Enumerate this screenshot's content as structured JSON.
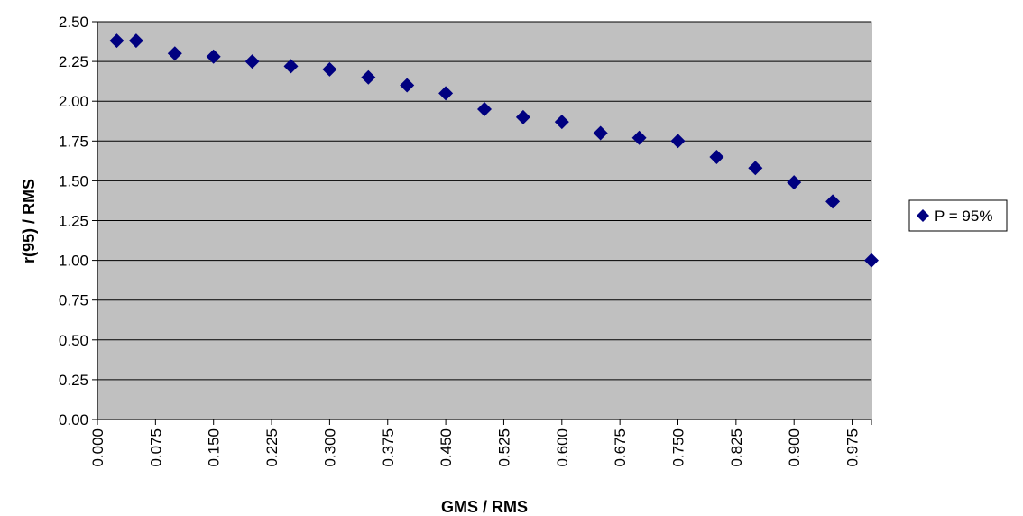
{
  "chart_data": {
    "type": "scatter",
    "title": "",
    "xlabel": "GMS / RMS",
    "ylabel": "r(95) / RMS",
    "xlim": [
      0.0,
      1.0
    ],
    "ylim": [
      0.0,
      2.5
    ],
    "x_ticks": [
      "0.000",
      "0.075",
      "0.150",
      "0.225",
      "0.300",
      "0.375",
      "0.450",
      "0.525",
      "0.600",
      "0.675",
      "0.750",
      "0.825",
      "0.900",
      "0.975"
    ],
    "y_ticks": [
      "0.00",
      "0.25",
      "0.50",
      "0.75",
      "1.00",
      "1.25",
      "1.50",
      "1.75",
      "2.00",
      "2.25",
      "2.50"
    ],
    "grid": "horizontal",
    "legend_position": "right",
    "series": [
      {
        "name": "P = 95%",
        "color": "#000080",
        "marker": "diamond",
        "x": [
          0.025,
          0.05,
          0.1,
          0.15,
          0.2,
          0.25,
          0.3,
          0.35,
          0.4,
          0.45,
          0.5,
          0.55,
          0.6,
          0.65,
          0.7,
          0.75,
          0.8,
          0.85,
          0.9,
          0.95,
          1.0
        ],
        "y": [
          2.38,
          2.38,
          2.3,
          2.28,
          2.25,
          2.22,
          2.2,
          2.15,
          2.1,
          2.05,
          1.95,
          1.9,
          1.87,
          1.8,
          1.77,
          1.75,
          1.65,
          1.58,
          1.49,
          1.37,
          1.0
        ]
      }
    ]
  }
}
